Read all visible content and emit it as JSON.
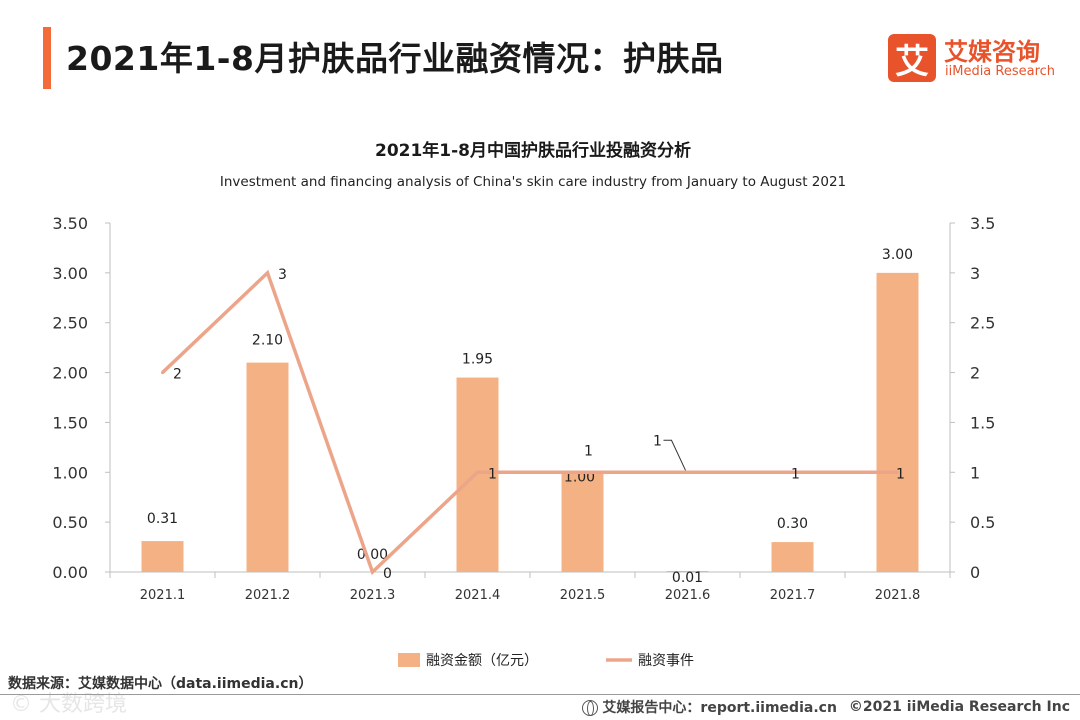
{
  "header": {
    "title": "2021年1-8月护肤品行业融资情况：护肤品",
    "logo_mark": "艾",
    "logo_cn": "艾媒咨询",
    "logo_en": "iiMedia Research"
  },
  "chart_data": {
    "type": "bar+line",
    "title": "2021年1-8月中国护肤品行业投融资分析",
    "subtitle": "Investment and financing analysis of China's skin care industry from January to August 2021",
    "categories": [
      "2021.1",
      "2021.2",
      "2021.3",
      "2021.4",
      "2021.5",
      "2021.6",
      "2021.7",
      "2021.8"
    ],
    "series": [
      {
        "name": "融资金额（亿元）",
        "type": "bar",
        "axis": "left",
        "color": "#f4b183",
        "values": [
          0.31,
          2.1,
          0.0,
          1.95,
          1.0,
          0.01,
          0.3,
          3.0
        ],
        "labels": [
          "0.31",
          "2.10",
          "0.00",
          "1.95",
          "1.00",
          "0.01",
          "0.30",
          "3.00"
        ]
      },
      {
        "name": "融资事件",
        "type": "line",
        "axis": "right",
        "color": "#eda58a",
        "values": [
          2,
          3,
          0,
          1,
          1,
          1,
          1,
          1
        ],
        "labels": [
          "2",
          "3",
          "0",
          "1",
          "1",
          "1",
          "1",
          "1"
        ]
      }
    ],
    "ylim_left": [
      0,
      3.5
    ],
    "yticks_left": [
      "0.00",
      "0.50",
      "1.00",
      "1.50",
      "2.00",
      "2.50",
      "3.00",
      "3.50"
    ],
    "ylim_right": [
      0,
      3.5
    ],
    "yticks_right": [
      "0",
      "0.5",
      "1",
      "1.5",
      "2",
      "2.5",
      "3",
      "3.5"
    ],
    "legend_position": "bottom"
  },
  "footer": {
    "source": "数据来源：艾媒数据中心（data.iimedia.cn）",
    "watermark": "© 大数跨境",
    "report_site": "艾媒报告中心：report.iimedia.cn",
    "copyright": "©2021  iiMedia Research  Inc"
  }
}
